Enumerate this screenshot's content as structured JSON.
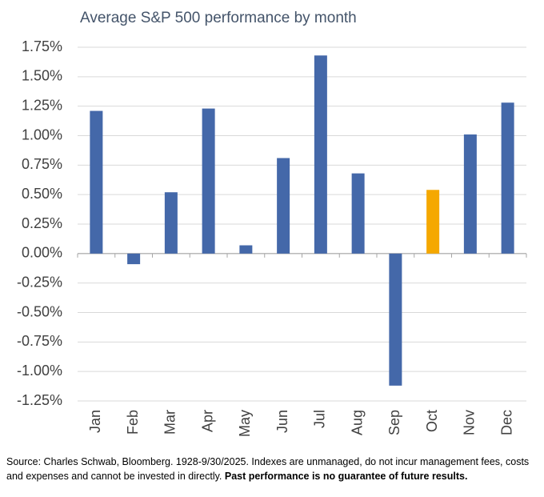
{
  "chart_data": {
    "type": "bar",
    "title": "Average S&P 500 performance by month",
    "categories": [
      "Jan",
      "Feb",
      "Mar",
      "Apr",
      "May",
      "Jun",
      "Jul",
      "Aug",
      "Sep",
      "Oct",
      "Nov",
      "Dec"
    ],
    "values": [
      1.21,
      -0.09,
      0.52,
      1.23,
      0.07,
      0.81,
      1.68,
      0.68,
      -1.12,
      0.54,
      1.01,
      1.28
    ],
    "colors": [
      "#4468a9",
      "#4468a9",
      "#4468a9",
      "#4468a9",
      "#4468a9",
      "#4468a9",
      "#4468a9",
      "#4468a9",
      "#4468a9",
      "#f5a800",
      "#4468a9",
      "#4468a9"
    ],
    "ylim": [
      -1.25,
      1.75
    ],
    "yticks": [
      {
        "value": -1.25,
        "label": "-1.25%"
      },
      {
        "value": -1,
        "label": "-1.00%"
      },
      {
        "value": -0.75,
        "label": "-0.75%"
      },
      {
        "value": -0.5,
        "label": "-0.50%"
      },
      {
        "value": -0.25,
        "label": "-0.25%"
      },
      {
        "value": 0,
        "label": "0.00%"
      },
      {
        "value": 0.25,
        "label": "0.25%"
      },
      {
        "value": 0.5,
        "label": "0.50%"
      },
      {
        "value": 0.75,
        "label": "0.75%"
      },
      {
        "value": 1,
        "label": "1.00%"
      },
      {
        "value": 1.25,
        "label": "1.25%"
      },
      {
        "value": 1.5,
        "label": "1.50%"
      },
      {
        "value": 1.75,
        "label": "1.75%"
      }
    ],
    "grid": true,
    "source": "Source: Charles Schwab, Bloomberg. 1928-9/30/2025. Indexes are unmanaged, do not incur management fees, costs and expenses and cannot be invested in directly.",
    "source_bold": "Past performance is no guarantee of future results."
  }
}
